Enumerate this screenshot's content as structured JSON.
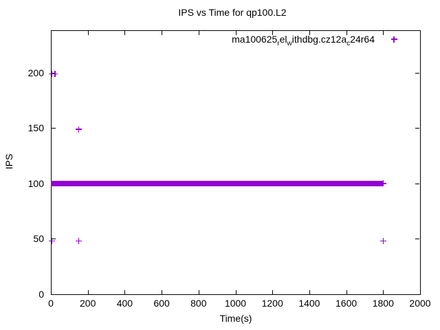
{
  "page": {
    "background": "#FFFFFF"
  },
  "chart_data": {
    "type": "scatter",
    "title": "IPS vs Time for qp100.L2",
    "xlabel": "Time(s)",
    "ylabel": "IPS",
    "xlim": [
      0,
      2000
    ],
    "ylim": [
      0,
      238.5
    ],
    "x_ticks": [
      0,
      200,
      400,
      600,
      800,
      1000,
      1200,
      1400,
      1600,
      1800,
      2000
    ],
    "y_ticks": [
      0,
      50,
      100,
      150,
      200
    ],
    "grid": false,
    "tick_style": "inward-mirrored-on-all-borders",
    "legend": {
      "position": "top-right-inside",
      "label_plain": "ma100625_rel_withdbg.cz12a_c24r64",
      "display_segments": [
        {
          "text": "ma100625"
        },
        {
          "sub": "r"
        },
        {
          "text": "el"
        },
        {
          "sub": "w"
        },
        {
          "text": "ithdbg.cz12a"
        },
        {
          "sub": "c"
        },
        {
          "text": "24r64"
        }
      ]
    },
    "series": [
      {
        "name": "ma100625_rel_withdbg.cz12a_c24r64",
        "marker": "+",
        "color": "#9400D3",
        "points": [
          [
            5,
            199
          ],
          [
            22,
            199
          ],
          [
            150,
            149
          ],
          [
            5,
            48
          ],
          [
            150,
            48
          ],
          [
            1800,
            48
          ],
          [
            1800,
            100
          ]
        ],
        "dense_band": {
          "y": 100,
          "x_start": 0,
          "x_end": 1800,
          "note": "continuous run of overlapping + markers at IPS ≈ 100 from t = 0 to t ≈ 1800, rendered as a solid thick bar"
        }
      }
    ],
    "colors": {
      "series1": "#9400D3",
      "axis": "#000000",
      "text": "#000000",
      "background": "#FFFFFF"
    }
  }
}
